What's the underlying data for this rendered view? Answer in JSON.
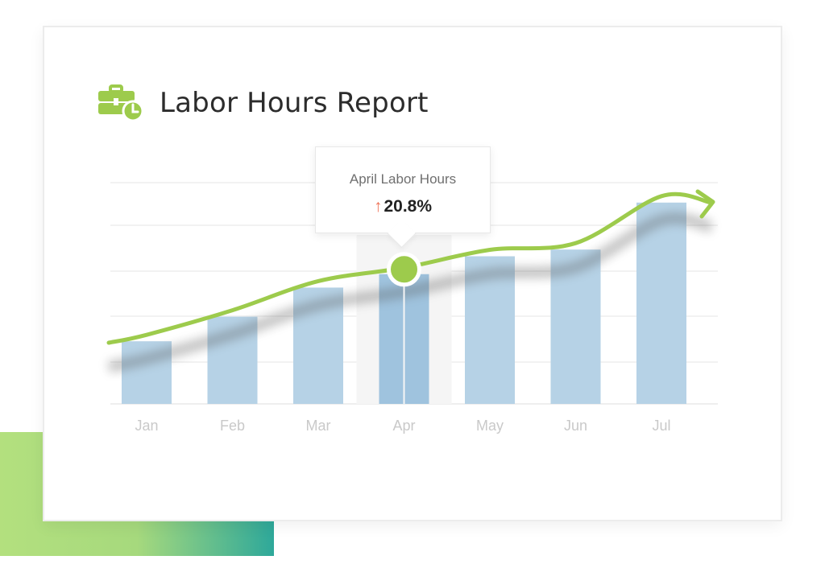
{
  "title": "Labor Hours Report",
  "icon": "briefcase-clock-icon",
  "tooltip": {
    "title": "April Labor Hours",
    "change": "20.8%",
    "direction_icon": "up-arrow-icon"
  },
  "chart_data": {
    "type": "bar",
    "categories": [
      "Jan",
      "Feb",
      "Mar",
      "Apr",
      "May",
      "Jun",
      "Jul"
    ],
    "values": [
      28,
      39,
      52,
      58,
      66,
      69,
      90
    ],
    "ylim": [
      0,
      100
    ],
    "highlight": "Apr",
    "trend_line": true,
    "grid": true
  },
  "colors": {
    "bar": "#b6d2e6",
    "bar_highlight": "#9fc3de",
    "trend": "#9dcb4c",
    "accent_start": "#b3e07e",
    "accent_end": "#2ea89a"
  }
}
